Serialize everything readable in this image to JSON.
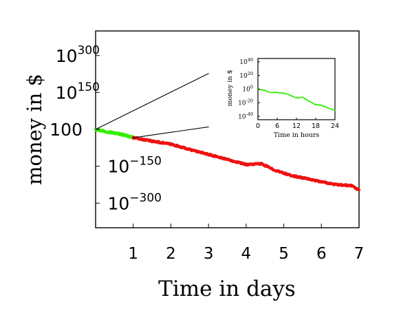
{
  "chart_data": [
    {
      "type": "line",
      "xlabel": "Time in days",
      "ylabel": "money in $",
      "y_scale": "log10",
      "xlim": [
        0,
        7
      ],
      "ylim_log10": [
        -400,
        400
      ],
      "x_ticks": [
        {
          "value": 1,
          "label": "1"
        },
        {
          "value": 2,
          "label": "2"
        },
        {
          "value": 3,
          "label": "3"
        },
        {
          "value": 4,
          "label": "4"
        },
        {
          "value": 5,
          "label": "5"
        },
        {
          "value": 6,
          "label": "6"
        },
        {
          "value": 7,
          "label": "7"
        }
      ],
      "y_ticks": [
        {
          "log10": 300,
          "base": "10",
          "exp": "300"
        },
        {
          "log10": 150,
          "base": "10",
          "exp": "150"
        },
        {
          "log10": 0,
          "base": "100",
          "exp": ""
        },
        {
          "log10": -150,
          "base": "10",
          "exp": "−150"
        },
        {
          "log10": -300,
          "base": "10",
          "exp": "−300"
        }
      ],
      "grid": false,
      "series": [
        {
          "color": "#33ee00",
          "points_log10": [
            [
              0,
              0
            ],
            [
              0.25,
              -8
            ],
            [
              0.5,
              -15
            ],
            [
              0.75,
              -22
            ],
            [
              1.0,
              -34
            ]
          ]
        },
        {
          "color": "#ee1111",
          "points_log10": [
            [
              1.0,
              -34
            ],
            [
              1.5,
              -48
            ],
            [
              2.0,
              -60
            ],
            [
              2.5,
              -82
            ],
            [
              3.0,
              -102
            ],
            [
              3.5,
              -122
            ],
            [
              4.0,
              -143
            ],
            [
              4.4,
              -140
            ],
            [
              4.8,
              -168
            ],
            [
              5.2,
              -188
            ],
            [
              5.6,
              -200
            ],
            [
              6.0,
              -213
            ],
            [
              6.4,
              -225
            ],
            [
              6.8,
              -229
            ],
            [
              7.0,
              -246
            ]
          ]
        },
        {
          "color": "#000000",
          "points_log10": [
            [
              0,
              0
            ],
            [
              3.0,
              227
            ]
          ]
        },
        {
          "color": "#000000",
          "points_log10": [
            [
              1.0,
              -34
            ],
            [
              3.0,
              10
            ]
          ]
        }
      ]
    },
    {
      "type": "line",
      "xlabel": "Time in hours",
      "ylabel": "money in $",
      "y_scale": "log10",
      "xlim": [
        0,
        24
      ],
      "ylim_log10": [
        -45,
        45
      ],
      "x_ticks": [
        {
          "value": 0,
          "label": "0"
        },
        {
          "value": 6,
          "label": "6"
        },
        {
          "value": 12,
          "label": "12"
        },
        {
          "value": 18,
          "label": "18"
        },
        {
          "value": 24,
          "label": "24"
        }
      ],
      "y_ticks": [
        {
          "log10": 40,
          "base": "10",
          "exp": "40"
        },
        {
          "log10": 20,
          "base": "10",
          "exp": "20"
        },
        {
          "log10": 0,
          "base": "10",
          "exp": "0"
        },
        {
          "log10": -20,
          "base": "10",
          "exp": "-20"
        },
        {
          "log10": -40,
          "base": "10",
          "exp": "-40"
        }
      ],
      "grid": false,
      "series": [
        {
          "color": "#33ee00",
          "points_log10": [
            [
              0,
              0
            ],
            [
              2,
              -2
            ],
            [
              4,
              -5
            ],
            [
              6,
              -5
            ],
            [
              8,
              -6
            ],
            [
              10,
              -9
            ],
            [
              12,
              -13
            ],
            [
              14,
              -12
            ],
            [
              16,
              -18
            ],
            [
              18,
              -23
            ],
            [
              20,
              -24
            ],
            [
              22,
              -28
            ],
            [
              24,
              -31
            ]
          ]
        }
      ]
    }
  ]
}
